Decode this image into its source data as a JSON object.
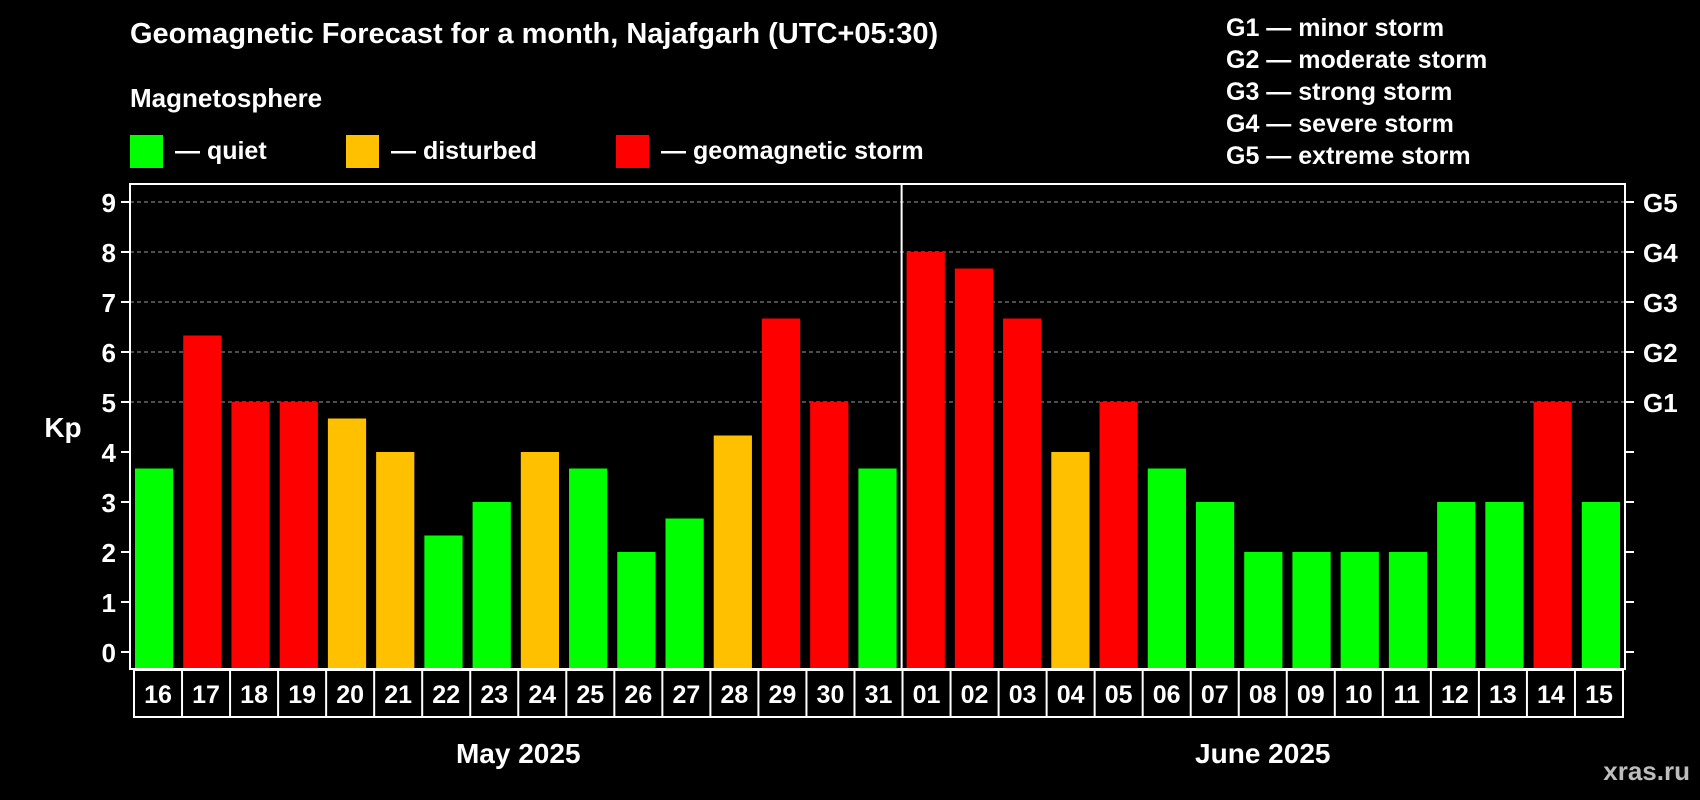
{
  "header": {
    "title": "Geomagnetic Forecast for a month, Najafgarh (UTC+05:30)",
    "magnetosphere_label": "Magnetosphere"
  },
  "legend": [
    {
      "label": "— quiet",
      "color": "#00ff00"
    },
    {
      "label": "— disturbed",
      "color": "#ffc000"
    },
    {
      "label": "— geomagnetic storm",
      "color": "#ff0000"
    }
  ],
  "storm_scale": [
    "G1 — minor storm",
    "G2 — moderate storm",
    "G3 — strong storm",
    "G4 — severe storm",
    "G5 — extreme storm"
  ],
  "watermark": "xras.ru",
  "chart_data": {
    "type": "bar",
    "ylabel": "Kp",
    "ylim": [
      0,
      9
    ],
    "yticks": [
      "0",
      "1",
      "2",
      "3",
      "4",
      "5",
      "6",
      "7",
      "8",
      "9"
    ],
    "right_axis_labels": [
      {
        "kp": 5,
        "label": "G1"
      },
      {
        "kp": 6,
        "label": "G2"
      },
      {
        "kp": 7,
        "label": "G3"
      },
      {
        "kp": 8,
        "label": "G4"
      },
      {
        "kp": 9,
        "label": "G5"
      }
    ],
    "months": [
      {
        "label": "May 2025",
        "first_index": 0,
        "count": 16
      },
      {
        "label": "June 2025",
        "first_index": 16,
        "count": 15
      }
    ],
    "categories": [
      "16",
      "17",
      "18",
      "19",
      "20",
      "21",
      "22",
      "23",
      "24",
      "25",
      "26",
      "27",
      "28",
      "29",
      "30",
      "31",
      "01",
      "02",
      "03",
      "04",
      "05",
      "06",
      "07",
      "08",
      "09",
      "10",
      "11",
      "12",
      "13",
      "14",
      "15"
    ],
    "values": [
      3.67,
      6.33,
      5,
      5,
      4.67,
      4,
      2.33,
      3,
      4,
      3.67,
      2,
      2.67,
      4.33,
      6.67,
      5,
      3.67,
      8,
      7.67,
      6.67,
      4,
      5,
      3.67,
      3,
      2,
      2,
      2,
      2,
      3,
      3,
      5,
      3
    ],
    "status": [
      "quiet",
      "storm",
      "storm",
      "storm",
      "disturbed",
      "disturbed",
      "quiet",
      "quiet",
      "disturbed",
      "quiet",
      "quiet",
      "quiet",
      "disturbed",
      "storm",
      "storm",
      "quiet",
      "storm",
      "storm",
      "storm",
      "disturbed",
      "storm",
      "quiet",
      "quiet",
      "quiet",
      "quiet",
      "quiet",
      "quiet",
      "quiet",
      "quiet",
      "storm",
      "quiet"
    ],
    "status_colors": {
      "quiet": "#00ff00",
      "disturbed": "#ffc000",
      "storm": "#ff0000"
    },
    "grid": true
  }
}
